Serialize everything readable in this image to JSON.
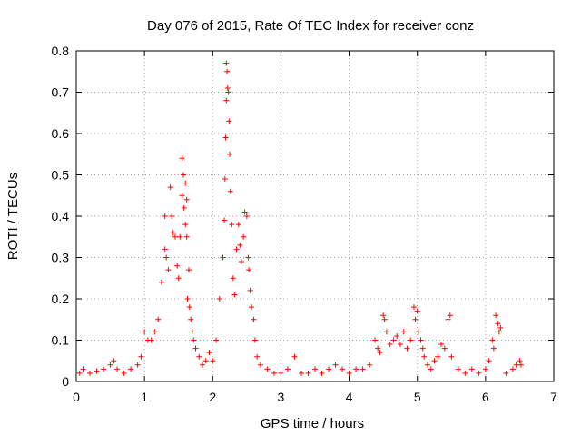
{
  "chart_data": {
    "type": "scatter",
    "title": "Day 076 of 2015, Rate Of TEC Index for receiver conz",
    "xlabel": "GPS time / hours",
    "ylabel": "ROTI / TECUs",
    "xlim": [
      0,
      7
    ],
    "ylim": [
      0,
      0.8
    ],
    "x_ticks": [
      "0",
      "1",
      "2",
      "3",
      "4",
      "5",
      "6",
      "7"
    ],
    "y_ticks": [
      "0",
      "0.1",
      "0.2",
      "0.3",
      "0.4",
      "0.5",
      "0.6",
      "0.7",
      "0.8"
    ],
    "grid": true,
    "marker": "+",
    "color": "#ff0000",
    "series": [
      {
        "x": [
          0.05,
          0.1,
          0.2,
          0.3,
          0.4,
          0.5,
          0.55,
          0.6,
          0.7,
          0.8,
          0.9,
          0.95,
          1.0,
          1.05,
          1.1,
          1.15,
          1.2,
          1.25,
          1.3,
          1.3,
          1.32,
          1.35,
          1.38,
          1.4,
          1.42,
          1.45,
          1.48,
          1.5,
          1.52,
          1.55,
          1.55,
          1.57,
          1.58,
          1.6,
          1.6,
          1.62,
          1.62,
          1.63,
          1.65,
          1.66,
          1.68,
          1.7,
          1.72,
          1.75,
          1.8,
          1.85,
          1.9,
          1.95,
          2.0,
          2.05,
          2.1,
          2.15,
          2.17,
          2.18,
          2.19,
          2.2,
          2.2,
          2.21,
          2.22,
          2.23,
          2.24,
          2.25,
          2.26,
          2.28,
          2.3,
          2.32,
          2.35,
          2.38,
          2.4,
          2.42,
          2.45,
          2.47,
          2.5,
          2.52,
          2.53,
          2.55,
          2.57,
          2.6,
          2.62,
          2.65,
          2.7,
          2.8,
          2.9,
          3.0,
          3.1,
          3.2,
          3.3,
          3.4,
          3.5,
          3.6,
          3.7,
          3.8,
          3.9,
          4.0,
          4.1,
          4.2,
          4.3,
          4.38,
          4.42,
          4.45,
          4.5,
          4.52,
          4.55,
          4.6,
          4.65,
          4.7,
          4.75,
          4.8,
          4.85,
          4.9,
          4.95,
          4.97,
          5.0,
          5.02,
          5.05,
          5.08,
          5.1,
          5.15,
          5.2,
          5.25,
          5.3,
          5.35,
          5.4,
          5.45,
          5.48,
          5.5,
          5.6,
          5.7,
          5.8,
          5.9,
          6.0,
          6.05,
          6.1,
          6.12,
          6.15,
          6.18,
          6.2,
          6.22,
          6.3,
          6.4,
          6.45,
          6.5,
          6.52
        ],
        "y": [
          0.02,
          0.03,
          0.02,
          0.025,
          0.03,
          0.04,
          0.05,
          0.03,
          0.02,
          0.03,
          0.04,
          0.06,
          0.12,
          0.1,
          0.1,
          0.12,
          0.15,
          0.24,
          0.32,
          0.4,
          0.3,
          0.27,
          0.47,
          0.4,
          0.36,
          0.35,
          0.28,
          0.25,
          0.35,
          0.45,
          0.54,
          0.5,
          0.42,
          0.48,
          0.38,
          0.44,
          0.35,
          0.2,
          0.27,
          0.18,
          0.15,
          0.12,
          0.1,
          0.08,
          0.06,
          0.04,
          0.05,
          0.07,
          0.05,
          0.1,
          0.2,
          0.3,
          0.39,
          0.49,
          0.59,
          0.68,
          0.77,
          0.75,
          0.71,
          0.7,
          0.63,
          0.55,
          0.46,
          0.38,
          0.25,
          0.21,
          0.32,
          0.38,
          0.33,
          0.29,
          0.35,
          0.41,
          0.4,
          0.3,
          0.27,
          0.22,
          0.18,
          0.15,
          0.1,
          0.06,
          0.04,
          0.03,
          0.02,
          0.02,
          0.03,
          0.06,
          0.02,
          0.02,
          0.03,
          0.02,
          0.03,
          0.04,
          0.03,
          0.02,
          0.03,
          0.03,
          0.04,
          0.1,
          0.08,
          0.07,
          0.16,
          0.15,
          0.12,
          0.09,
          0.1,
          0.11,
          0.09,
          0.12,
          0.08,
          0.1,
          0.18,
          0.15,
          0.17,
          0.12,
          0.1,
          0.08,
          0.06,
          0.04,
          0.03,
          0.05,
          0.06,
          0.09,
          0.08,
          0.15,
          0.16,
          0.06,
          0.03,
          0.02,
          0.03,
          0.02,
          0.03,
          0.05,
          0.1,
          0.08,
          0.16,
          0.14,
          0.12,
          0.13,
          0.02,
          0.03,
          0.04,
          0.05,
          0.04
        ]
      }
    ]
  }
}
